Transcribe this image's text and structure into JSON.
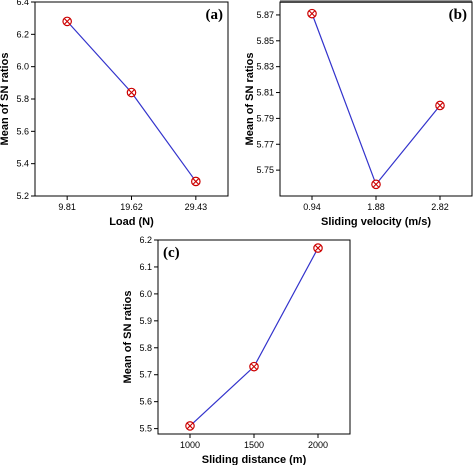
{
  "chart_data": [
    {
      "type": "line",
      "panel_label": "(a)",
      "x": [
        "9.81",
        "19.62",
        "29.43"
      ],
      "values": [
        6.28,
        5.84,
        5.29
      ],
      "xlabel": "Load (N)",
      "ylabel": "Mean of SN ratios",
      "ylim": [
        5.2,
        6.4
      ],
      "yticks": [
        "5.2",
        "5.4",
        "5.6",
        "5.8",
        "6.0",
        "6.2",
        "6.4"
      ],
      "grid": false,
      "line_color": "#3333cc",
      "marker_color": "#cc0000"
    },
    {
      "type": "line",
      "panel_label": "(b)",
      "x": [
        "0.94",
        "1.88",
        "2.82"
      ],
      "values": [
        5.871,
        5.739,
        5.8
      ],
      "xlabel": "Sliding velocity (m/s)",
      "ylabel": "Mean of SN ratios",
      "ylim": [
        5.73,
        5.88
      ],
      "yticks": [
        "5.75",
        "5.77",
        "5.79",
        "5.81",
        "5.83",
        "5.85",
        "5.87"
      ],
      "grid": false,
      "line_color": "#3333cc",
      "marker_color": "#cc0000"
    },
    {
      "type": "line",
      "panel_label": "(c)",
      "x": [
        "1000",
        "1500",
        "2000"
      ],
      "values": [
        5.51,
        5.73,
        6.17
      ],
      "xlabel": "Sliding distance (m)",
      "ylabel": "Mean of SN ratios",
      "ylim": [
        5.48,
        6.2
      ],
      "yticks": [
        "5.5",
        "5.6",
        "5.7",
        "5.8",
        "5.9",
        "6.0",
        "6.1",
        "6.2"
      ],
      "grid": false,
      "line_color": "#3333cc",
      "marker_color": "#cc0000"
    }
  ]
}
